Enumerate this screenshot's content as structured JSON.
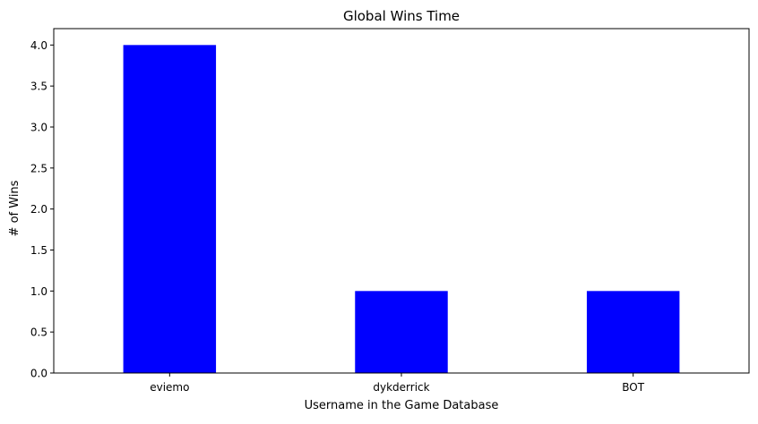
{
  "chart_data": {
    "type": "bar",
    "title": "Global Wins Time",
    "xlabel": "Username in the Game Database",
    "ylabel": "# of Wins",
    "categories": [
      "eviemo",
      "dykderrick",
      "BOT"
    ],
    "values": [
      4,
      1,
      1
    ],
    "ylim": [
      0,
      4.2
    ],
    "yticks": [
      "0.0",
      "0.5",
      "1.0",
      "1.5",
      "2.0",
      "2.5",
      "3.0",
      "3.5",
      "4.0"
    ],
    "bar_color": "#0000ff",
    "grid": false,
    "legend": "none"
  }
}
